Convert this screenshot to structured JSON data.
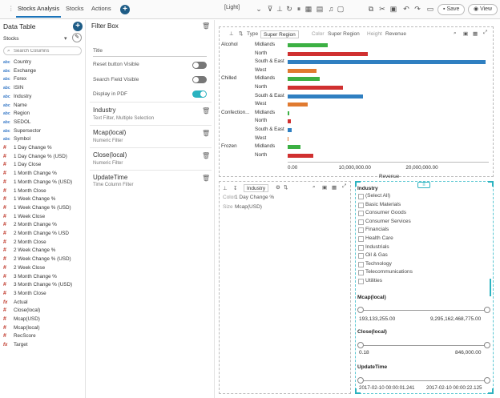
{
  "toolbar": {
    "tabs": [
      "Stocks Analysis",
      "Stocks",
      "Actions"
    ],
    "theme": "[Light]",
    "save_label": "Save",
    "view_label": "View"
  },
  "data_table": {
    "title": "Data Table",
    "source": "Stocks",
    "search_placeholder": "Search Columns",
    "columns": [
      {
        "type": "abc",
        "name": "Country"
      },
      {
        "type": "abc",
        "name": "Exchange"
      },
      {
        "type": "abc",
        "name": "Forex"
      },
      {
        "type": "abc",
        "name": "ISIN"
      },
      {
        "type": "abc",
        "name": "Industry"
      },
      {
        "type": "abc",
        "name": "Name"
      },
      {
        "type": "abc",
        "name": "Region"
      },
      {
        "type": "abc",
        "name": "SEDOL"
      },
      {
        "type": "abc",
        "name": "Supersector"
      },
      {
        "type": "abc",
        "name": "Symbol"
      },
      {
        "type": "#",
        "name": "1 Day Change %"
      },
      {
        "type": "#",
        "name": "1 Day Change % (USD)"
      },
      {
        "type": "#",
        "name": "1 Day Close"
      },
      {
        "type": "#",
        "name": "1 Month Change %"
      },
      {
        "type": "#",
        "name": "1 Month Change % (USD)"
      },
      {
        "type": "#",
        "name": "1 Month Close"
      },
      {
        "type": "#",
        "name": "1 Week Change %"
      },
      {
        "type": "#",
        "name": "1 Week Change % (USD)"
      },
      {
        "type": "#",
        "name": "1 Week Close"
      },
      {
        "type": "#",
        "name": "2 Month Change %"
      },
      {
        "type": "#",
        "name": "2 Month Change % USD"
      },
      {
        "type": "#",
        "name": "2 Month Close"
      },
      {
        "type": "#",
        "name": "2 Week Change %"
      },
      {
        "type": "#",
        "name": "2 Week Change % (USD)"
      },
      {
        "type": "#",
        "name": "2 Week Close"
      },
      {
        "type": "#",
        "name": "3 Month Change %"
      },
      {
        "type": "#",
        "name": "3 Month Change % (USD)"
      },
      {
        "type": "#",
        "name": "3 Month Close"
      },
      {
        "type": "fx",
        "name": "Actual"
      },
      {
        "type": "#",
        "name": "Close(local)"
      },
      {
        "type": "#",
        "name": "Mcap(USD)"
      },
      {
        "type": "#",
        "name": "Mcap(local)"
      },
      {
        "type": "#",
        "name": "RecScore"
      },
      {
        "type": "fx",
        "name": "Target"
      }
    ]
  },
  "filter_box": {
    "title": "Filter Box",
    "title_field_label": "Title",
    "reset_label": "Reset button Visible",
    "search_label": "Search Field Visible",
    "pdf_label": "Display in PDF",
    "filters": [
      {
        "name": "Industry",
        "sub": "Text Filter, Multiple Selection"
      },
      {
        "name": "Mcap(local)",
        "sub": "Numeric Filter"
      },
      {
        "name": "Close(local)",
        "sub": "Numeric Filter"
      },
      {
        "name": "UpdateTime",
        "sub": "Time Column Filter"
      }
    ]
  },
  "bar_panel": {
    "type_label": "Type",
    "type_value": "Super Region",
    "color_label": "Color",
    "color_value": "Super Region",
    "height_label": "Height",
    "height_value": "Revenue"
  },
  "chart_data": {
    "type": "bar",
    "orientation": "horizontal",
    "xlabel": "Revenue",
    "xlim": [
      0,
      30000000
    ],
    "ticks": [
      "0.00",
      "10,000,000.00",
      "20,000,000.00"
    ],
    "groups": [
      {
        "name": "Alcohol",
        "bars": [
          {
            "label": "Midlands",
            "value": 6000000,
            "color": "#3cb043"
          },
          {
            "label": "North",
            "value": 12000000,
            "color": "#d03030"
          },
          {
            "label": "South & East",
            "value": 29500000,
            "color": "#2f7fc1"
          },
          {
            "label": "West",
            "value": 4300000,
            "color": "#e07a30"
          }
        ]
      },
      {
        "name": "Chilled",
        "bars": [
          {
            "label": "Midlands",
            "value": 4800000,
            "color": "#3cb043"
          },
          {
            "label": "North",
            "value": 8200000,
            "color": "#d03030"
          },
          {
            "label": "South & East",
            "value": 11200000,
            "color": "#2f7fc1"
          },
          {
            "label": "West",
            "value": 3000000,
            "color": "#e07a30"
          }
        ]
      },
      {
        "name": "Confection...",
        "bars": [
          {
            "label": "Midlands",
            "value": 250000,
            "color": "#3cb043"
          },
          {
            "label": "North",
            "value": 450000,
            "color": "#d03030"
          },
          {
            "label": "South & East",
            "value": 650000,
            "color": "#2f7fc1"
          },
          {
            "label": "West",
            "value": 120000,
            "color": "#e07a30"
          }
        ]
      },
      {
        "name": "Frozen",
        "bars": [
          {
            "label": "Midlands",
            "value": 1900000,
            "color": "#3cb043"
          },
          {
            "label": "North",
            "value": 3800000,
            "color": "#d03030"
          }
        ]
      }
    ]
  },
  "treemap_panel": {
    "group_value": "Industry",
    "color_label": "Color",
    "color_value": "1 Day Change %",
    "size_label": "Size",
    "size_value": "Mcap(USD)"
  },
  "filters_panel": {
    "industry_title": "Industry",
    "industries": [
      "(Select All)",
      "Basic Materials",
      "Consumer Goods",
      "Consumer Services",
      "Financials",
      "Health Care",
      "Industrials",
      "Oil & Gas",
      "Technology",
      "Telecommunications",
      "Utilities"
    ],
    "mcap_title": "Mcap(local)",
    "mcap_min": "193,133,255.00",
    "mcap_max": "9,295,162,468,775.00",
    "close_title": "Close(local)",
    "close_min": "0.18",
    "close_max": "846,000.00",
    "time_title": "UpdateTime",
    "time_min": "2017-02-10 00:00:01.241",
    "time_max": "2017-02-10 00:00:22.125"
  }
}
